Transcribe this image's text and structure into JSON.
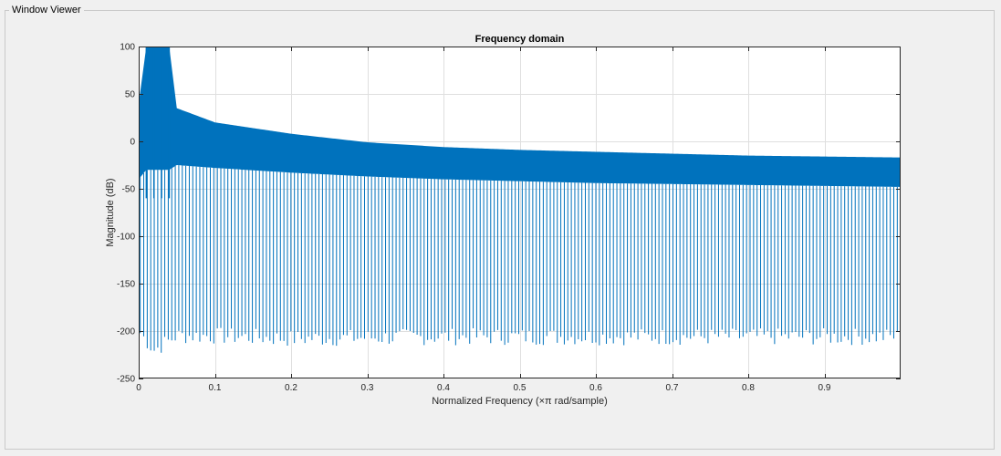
{
  "panel": {
    "title": "Window Viewer"
  },
  "chart_data": {
    "type": "line",
    "title": "Frequency domain",
    "xlabel": "Normalized Frequency  (×π rad/sample)",
    "ylabel": "Magnitude (dB)",
    "xlim": [
      0,
      1
    ],
    "ylim": [
      -250,
      100
    ],
    "xticks": [
      0,
      0.1,
      0.2,
      0.3,
      0.4,
      0.5,
      0.6,
      0.7,
      0.8,
      0.9
    ],
    "xtick_labels": [
      "0",
      "0.1",
      "0.2",
      "0.3",
      "0.4",
      "0.5",
      "0.6",
      "0.7",
      "0.8",
      "0.9"
    ],
    "yticks": [
      -250,
      -200,
      -150,
      -100,
      -50,
      0,
      50,
      100
    ],
    "ytick_labels": [
      "-250",
      "-200",
      "-150",
      "-100",
      "-50",
      "0",
      "50",
      "100"
    ],
    "grid": true,
    "color": "#0072bd",
    "series": [
      {
        "x": [
          0,
          0.01,
          0.02,
          0.03,
          0.04,
          0.05,
          0.1,
          0.2,
          0.3,
          0.4,
          0.5,
          0.6,
          0.7,
          0.8,
          0.9,
          1.0
        ],
        "envelope_top": [
          40,
          100,
          100,
          100,
          100,
          35,
          20,
          8,
          -1,
          -6,
          -9,
          -11,
          -13,
          -15,
          -16,
          -17
        ],
        "band_bottom": [
          -40,
          -30,
          -30,
          -30,
          -30,
          -25,
          -28,
          -33,
          -37,
          -40,
          -42,
          -44,
          -45,
          -46,
          -47,
          -48
        ],
        "null_floor": [
          -200,
          -210,
          -220,
          -215,
          -210,
          -205,
          -205,
          -208,
          -207,
          -206,
          -206,
          -206,
          -206,
          -206,
          -206,
          -206
        ]
      }
    ]
  }
}
